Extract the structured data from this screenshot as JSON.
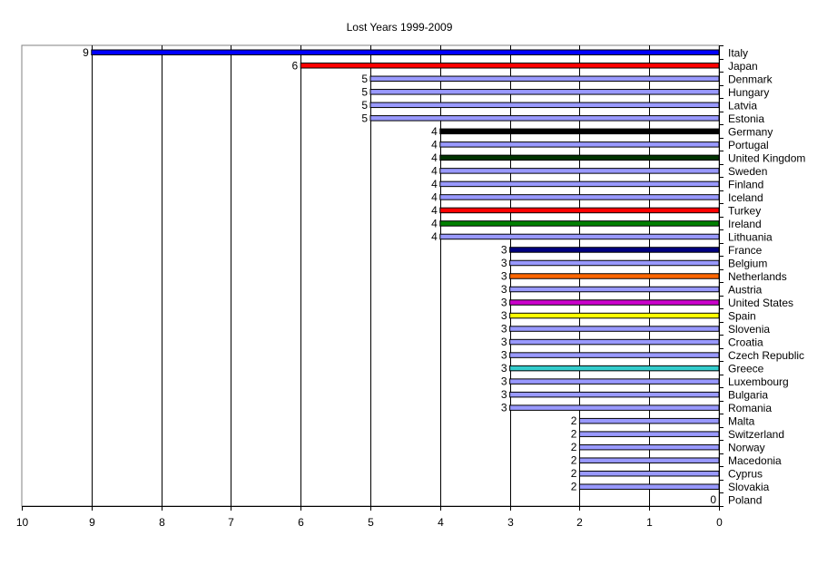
{
  "chart_data": {
    "type": "bar",
    "orientation": "horizontal",
    "title": "Lost Years 1999-2009",
    "xlabel": "",
    "ylabel": "",
    "x_reversed": true,
    "xlim": [
      0,
      10
    ],
    "x_ticks": [
      "0",
      "1",
      "2",
      "3",
      "4",
      "5",
      "6",
      "7",
      "8",
      "9",
      "10"
    ],
    "grid": "vertical major gridlines",
    "legend": "none",
    "default_color": "#9999ff",
    "bars": [
      {
        "category": "Italy",
        "value": 9,
        "color": "#0000ff"
      },
      {
        "category": "Japan",
        "value": 6,
        "color": "#ff0000"
      },
      {
        "category": "Denmark",
        "value": 5,
        "color": "#9999ff"
      },
      {
        "category": "Hungary",
        "value": 5,
        "color": "#9999ff"
      },
      {
        "category": "Latvia",
        "value": 5,
        "color": "#9999ff"
      },
      {
        "category": "Estonia",
        "value": 5,
        "color": "#9999ff"
      },
      {
        "category": "Germany",
        "value": 4,
        "color": "#000000"
      },
      {
        "category": "Portugal",
        "value": 4,
        "color": "#9999ff"
      },
      {
        "category": "United Kingdom",
        "value": 4,
        "color": "#003300"
      },
      {
        "category": "Sweden",
        "value": 4,
        "color": "#9999ff"
      },
      {
        "category": "Finland",
        "value": 4,
        "color": "#9999ff"
      },
      {
        "category": "Iceland",
        "value": 4,
        "color": "#9999ff"
      },
      {
        "category": "Turkey",
        "value": 4,
        "color": "#ff0000"
      },
      {
        "category": "Ireland",
        "value": 4,
        "color": "#008000"
      },
      {
        "category": "Lithuania",
        "value": 4,
        "color": "#9999ff"
      },
      {
        "category": "France",
        "value": 3,
        "color": "#000080"
      },
      {
        "category": "Belgium",
        "value": 3,
        "color": "#9999ff"
      },
      {
        "category": "Netherlands",
        "value": 3,
        "color": "#ff6600"
      },
      {
        "category": "Austria",
        "value": 3,
        "color": "#9999ff"
      },
      {
        "category": "United States",
        "value": 3,
        "color": "#cc00cc"
      },
      {
        "category": "Spain",
        "value": 3,
        "color": "#ffff00"
      },
      {
        "category": "Slovenia",
        "value": 3,
        "color": "#9999ff"
      },
      {
        "category": "Croatia",
        "value": 3,
        "color": "#9999ff"
      },
      {
        "category": "Czech Republic",
        "value": 3,
        "color": "#9999ff"
      },
      {
        "category": "Greece",
        "value": 3,
        "color": "#33cccc"
      },
      {
        "category": "Luxembourg",
        "value": 3,
        "color": "#9999ff"
      },
      {
        "category": "Bulgaria",
        "value": 3,
        "color": "#9999ff"
      },
      {
        "category": "Romania",
        "value": 3,
        "color": "#9999ff"
      },
      {
        "category": "Malta",
        "value": 2,
        "color": "#9999ff"
      },
      {
        "category": "Switzerland",
        "value": 2,
        "color": "#9999ff"
      },
      {
        "category": "Norway",
        "value": 2,
        "color": "#9999ff"
      },
      {
        "category": "Macedonia",
        "value": 2,
        "color": "#9999ff"
      },
      {
        "category": "Cyprus",
        "value": 2,
        "color": "#9999ff"
      },
      {
        "category": "Slovakia",
        "value": 2,
        "color": "#9999ff"
      },
      {
        "category": "Poland",
        "value": 0,
        "color": "#9999ff"
      }
    ]
  }
}
